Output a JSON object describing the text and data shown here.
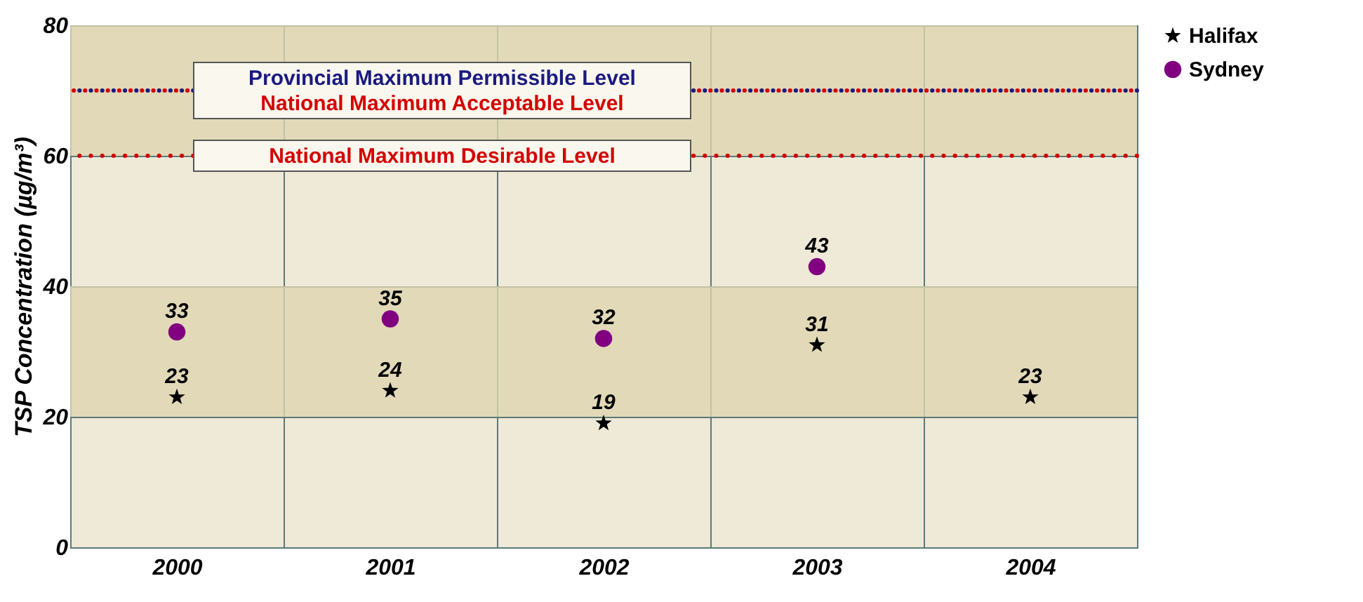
{
  "chart_data": {
    "type": "scatter",
    "ylabel": "TSP Concentration (µg/m³)",
    "categories": [
      "2000",
      "2001",
      "2002",
      "2003",
      "2004"
    ],
    "series": [
      {
        "name": "Halifax",
        "color": "#000000",
        "marker": "star",
        "values": [
          23,
          24,
          19,
          31,
          23
        ]
      },
      {
        "name": "Sydney",
        "color": "#800080",
        "marker": "circle",
        "values": [
          33,
          35,
          32,
          43,
          null
        ]
      }
    ],
    "ylim": [
      0,
      80
    ],
    "yticks": [
      0,
      20,
      40,
      60,
      80
    ],
    "grid": true,
    "legend": "right",
    "data_labels": true,
    "bands": [
      {
        "axis": "y",
        "from": 20,
        "to": 40,
        "color": "#ddd4b0"
      },
      {
        "axis": "y",
        "from": 60,
        "to": 80,
        "color": "#ddd4b0"
      }
    ],
    "ref_lines": [
      {
        "axis": "y",
        "value": 70,
        "label": "Provincial Maximum Permissible Level",
        "color": "#1a1a80",
        "line_style": "dotted"
      },
      {
        "axis": "y",
        "value": 70,
        "label": "National Maximum Acceptable Level",
        "color": "#d40000",
        "line_style": "dotted"
      },
      {
        "axis": "y",
        "value": 60,
        "label": "National Maximum Desirable Level",
        "color": "#d40000",
        "line_style": "dotted"
      }
    ]
  }
}
